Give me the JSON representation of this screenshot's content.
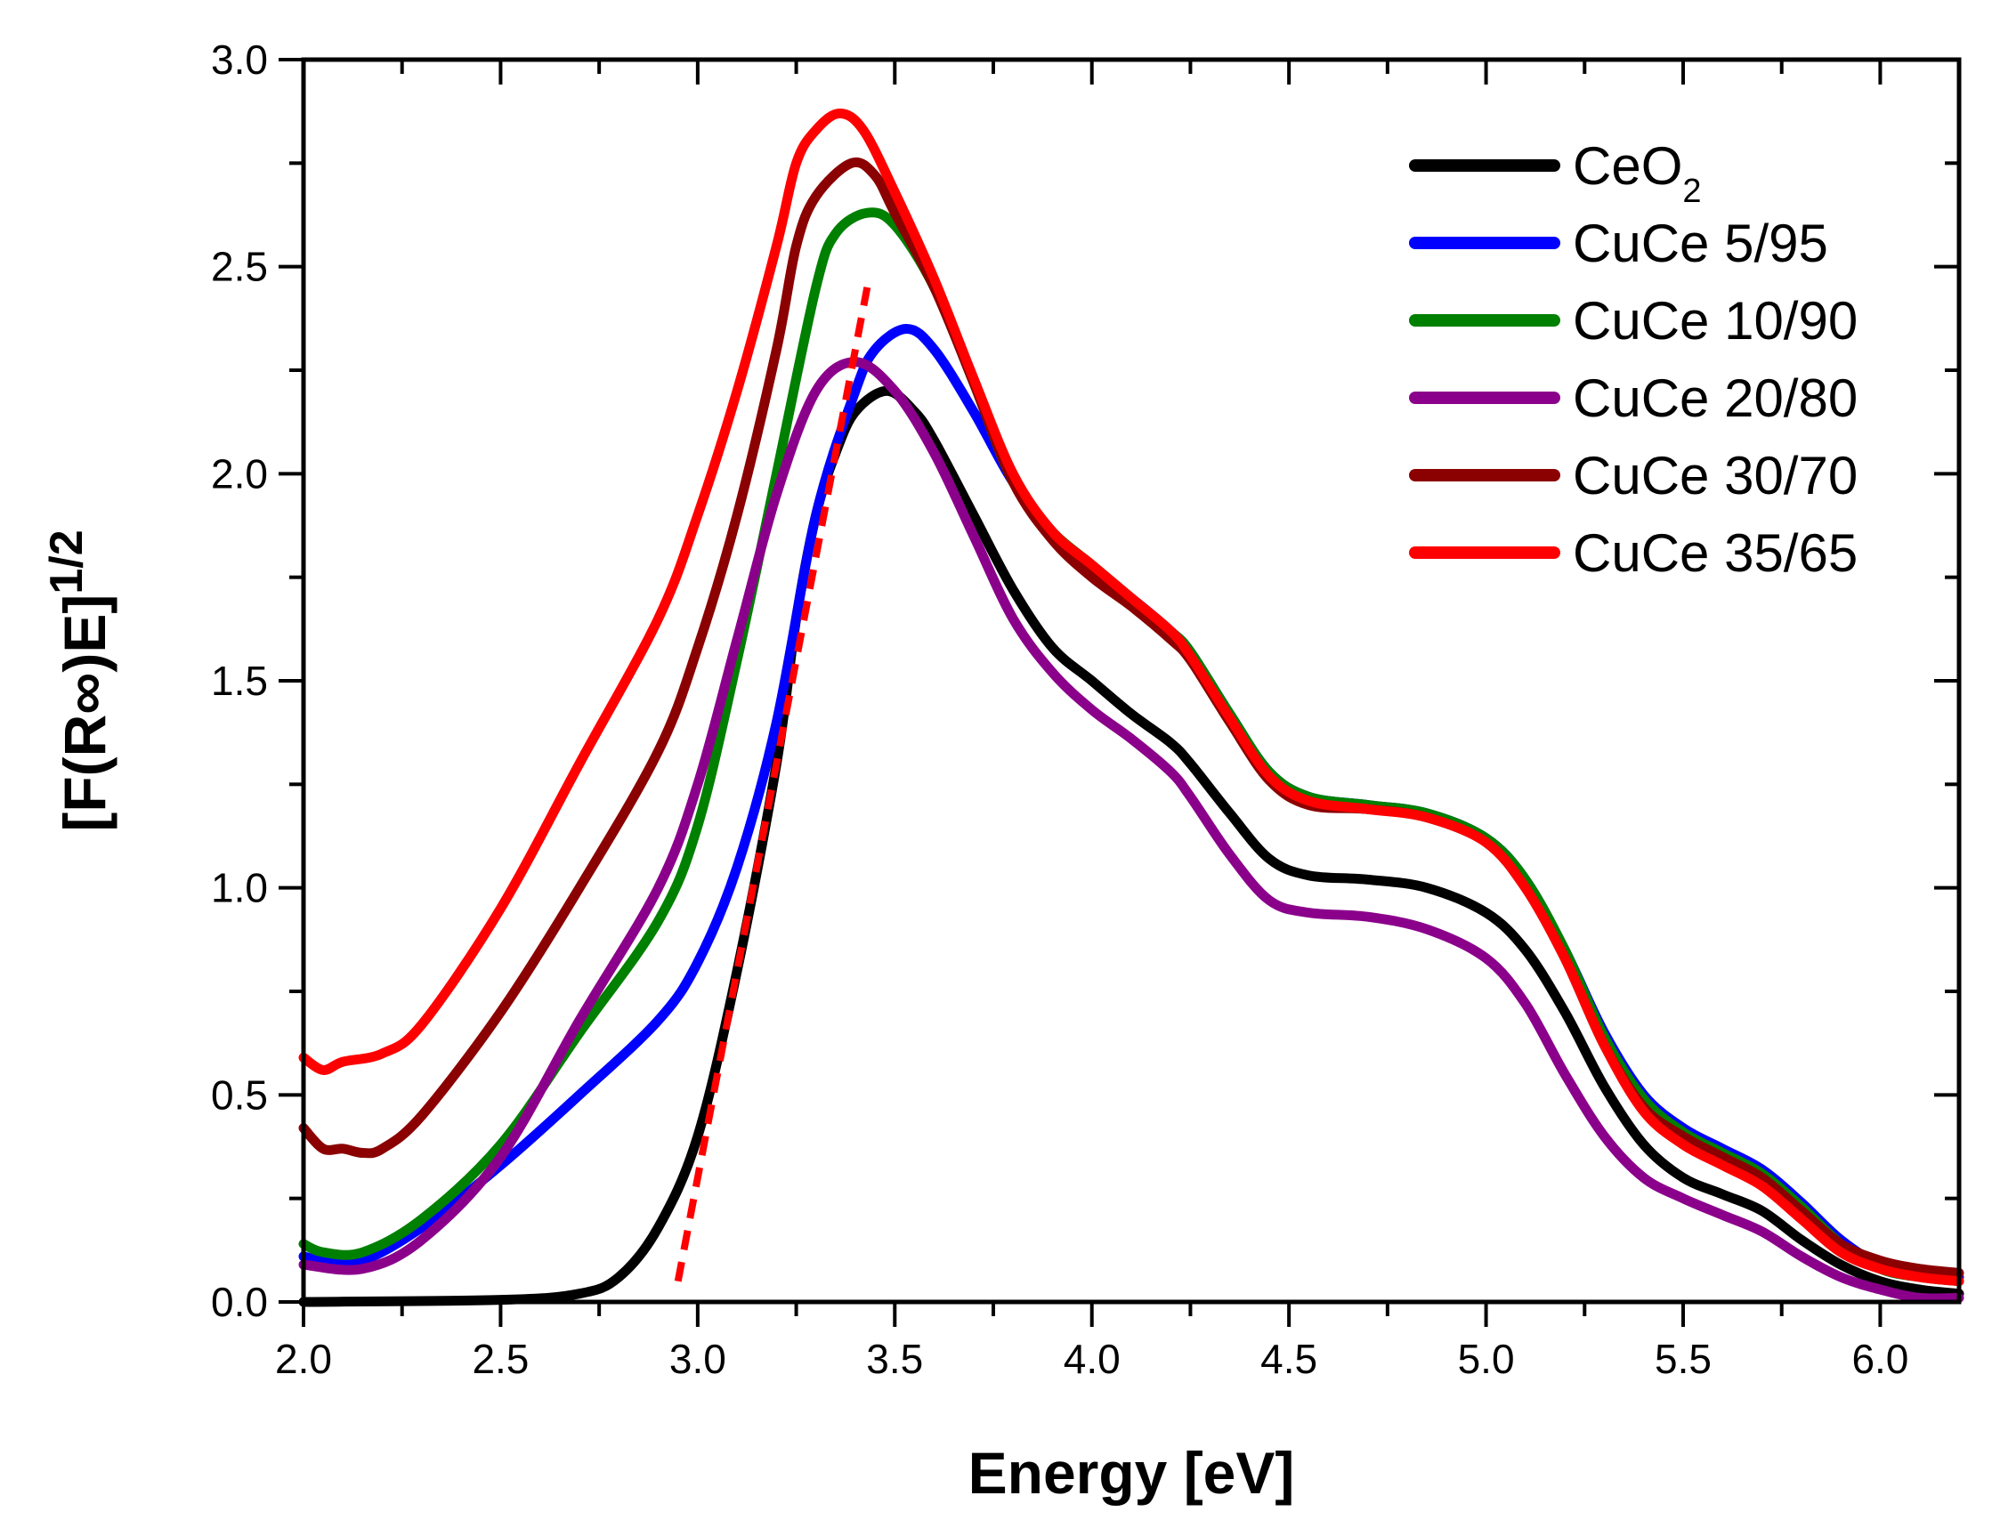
{
  "chart_data": {
    "type": "line",
    "title": "",
    "xlabel": "Energy [eV]",
    "ylabel": "[F(R∞)E]",
    "ylabel_superscript": "1/2",
    "xlim": [
      2.0,
      6.2
    ],
    "ylim": [
      0.0,
      3.0
    ],
    "xticks": [
      "2.0",
      "2.5",
      "3.0",
      "3.5",
      "4.0",
      "4.5",
      "5.0",
      "5.5",
      "6.0"
    ],
    "yticks": [
      "0.0",
      "0.5",
      "1.0",
      "1.5",
      "2.0",
      "2.5",
      "3.0"
    ],
    "grid": false,
    "legend_position": "top-right",
    "series": [
      {
        "name": "CeO",
        "subscript": "2",
        "color": "#000000",
        "x": [
          2.0,
          2.5,
          2.7,
          2.8,
          2.9,
          3.0,
          3.1,
          3.2,
          3.25,
          3.3,
          3.35,
          3.4,
          3.48,
          3.55,
          3.6,
          3.7,
          3.8,
          3.9,
          4.0,
          4.1,
          4.2,
          4.25,
          4.35,
          4.45,
          4.55,
          4.7,
          4.85,
          5.0,
          5.1,
          5.2,
          5.3,
          5.4,
          5.5,
          5.6,
          5.7,
          5.8,
          5.9,
          6.0,
          6.1,
          6.2
        ],
        "y": [
          0.0,
          0.005,
          0.02,
          0.06,
          0.18,
          0.4,
          0.8,
          1.3,
          1.65,
          1.9,
          2.05,
          2.15,
          2.2,
          2.15,
          2.08,
          1.9,
          1.72,
          1.58,
          1.5,
          1.42,
          1.35,
          1.3,
          1.18,
          1.07,
          1.03,
          1.02,
          1.0,
          0.94,
          0.85,
          0.7,
          0.52,
          0.38,
          0.3,
          0.26,
          0.22,
          0.15,
          0.09,
          0.05,
          0.03,
          0.02
        ]
      },
      {
        "name": "CuCe 5/95",
        "color": "#0000ff",
        "x": [
          2.0,
          2.05,
          2.15,
          2.3,
          2.5,
          2.7,
          2.9,
          3.0,
          3.1,
          3.2,
          3.3,
          3.4,
          3.45,
          3.53,
          3.6,
          3.7,
          3.8,
          3.9,
          4.0,
          4.1,
          4.2,
          4.25,
          4.35,
          4.45,
          4.55,
          4.7,
          4.85,
          5.0,
          5.1,
          5.2,
          5.3,
          5.4,
          5.5,
          5.6,
          5.7,
          5.8,
          5.9,
          6.0,
          6.1,
          6.2
        ],
        "y": [
          0.11,
          0.1,
          0.1,
          0.18,
          0.33,
          0.5,
          0.68,
          0.82,
          1.05,
          1.4,
          1.9,
          2.2,
          2.3,
          2.35,
          2.3,
          2.15,
          1.98,
          1.86,
          1.77,
          1.7,
          1.62,
          1.57,
          1.42,
          1.28,
          1.22,
          1.2,
          1.18,
          1.12,
          1.02,
          0.85,
          0.65,
          0.5,
          0.42,
          0.37,
          0.32,
          0.24,
          0.15,
          0.09,
          0.07,
          0.06
        ]
      },
      {
        "name": "CuCe 10/90",
        "color": "#008000",
        "x": [
          2.0,
          2.05,
          2.15,
          2.3,
          2.5,
          2.7,
          2.9,
          3.0,
          3.1,
          3.2,
          3.3,
          3.35,
          3.43,
          3.5,
          3.6,
          3.7,
          3.8,
          3.9,
          4.0,
          4.1,
          4.2,
          4.25,
          4.35,
          4.45,
          4.55,
          4.7,
          4.85,
          5.0,
          5.1,
          5.2,
          5.3,
          5.4,
          5.5,
          5.6,
          5.7,
          5.8,
          5.9,
          6.0,
          6.1,
          6.2
        ],
        "y": [
          0.14,
          0.12,
          0.12,
          0.2,
          0.38,
          0.65,
          0.92,
          1.15,
          1.55,
          2.0,
          2.45,
          2.58,
          2.63,
          2.6,
          2.45,
          2.22,
          1.98,
          1.86,
          1.78,
          1.7,
          1.62,
          1.57,
          1.42,
          1.28,
          1.22,
          1.2,
          1.18,
          1.12,
          1.02,
          0.85,
          0.64,
          0.49,
          0.41,
          0.36,
          0.31,
          0.23,
          0.14,
          0.08,
          0.06,
          0.05
        ]
      },
      {
        "name": "CuCe 20/80",
        "color": "#8b008b",
        "x": [
          2.0,
          2.15,
          2.3,
          2.5,
          2.7,
          2.9,
          3.0,
          3.1,
          3.2,
          3.3,
          3.4,
          3.5,
          3.6,
          3.7,
          3.8,
          3.9,
          4.0,
          4.1,
          4.2,
          4.25,
          4.35,
          4.45,
          4.55,
          4.7,
          4.85,
          5.0,
          5.1,
          5.2,
          5.3,
          5.4,
          5.5,
          5.6,
          5.7,
          5.8,
          5.9,
          6.0,
          6.1,
          6.2
        ],
        "y": [
          0.09,
          0.08,
          0.15,
          0.35,
          0.68,
          1.0,
          1.25,
          1.6,
          1.95,
          2.2,
          2.27,
          2.2,
          2.05,
          1.85,
          1.65,
          1.52,
          1.43,
          1.36,
          1.28,
          1.22,
          1.08,
          0.97,
          0.94,
          0.93,
          0.9,
          0.83,
          0.72,
          0.55,
          0.4,
          0.3,
          0.25,
          0.21,
          0.17,
          0.11,
          0.06,
          0.03,
          0.01,
          0.01
        ]
      },
      {
        "name": "CuCe 30/70",
        "color": "#8b0000",
        "x": [
          2.0,
          2.05,
          2.1,
          2.15,
          2.2,
          2.3,
          2.5,
          2.7,
          2.9,
          3.0,
          3.1,
          3.2,
          3.25,
          3.3,
          3.39,
          3.45,
          3.5,
          3.6,
          3.7,
          3.8,
          3.9,
          4.0,
          4.1,
          4.2,
          4.25,
          4.35,
          4.45,
          4.55,
          4.7,
          4.85,
          5.0,
          5.1,
          5.2,
          5.3,
          5.4,
          5.5,
          5.6,
          5.7,
          5.8,
          5.9,
          6.0,
          6.1,
          6.2
        ],
        "y": [
          0.42,
          0.37,
          0.37,
          0.36,
          0.37,
          0.45,
          0.7,
          1.0,
          1.33,
          1.58,
          1.9,
          2.3,
          2.55,
          2.67,
          2.75,
          2.72,
          2.63,
          2.45,
          2.22,
          1.98,
          1.84,
          1.75,
          1.68,
          1.6,
          1.55,
          1.4,
          1.26,
          1.2,
          1.19,
          1.17,
          1.11,
          1.0,
          0.83,
          0.62,
          0.47,
          0.4,
          0.35,
          0.3,
          0.22,
          0.14,
          0.1,
          0.08,
          0.07
        ]
      },
      {
        "name": "CuCe 35/65",
        "color": "#ff0000",
        "x": [
          2.0,
          2.05,
          2.1,
          2.2,
          2.3,
          2.5,
          2.7,
          2.9,
          3.0,
          3.1,
          3.2,
          3.25,
          3.3,
          3.36,
          3.42,
          3.5,
          3.6,
          3.7,
          3.8,
          3.9,
          4.0,
          4.1,
          4.2,
          4.25,
          4.35,
          4.45,
          4.55,
          4.7,
          4.85,
          5.0,
          5.1,
          5.2,
          5.3,
          5.4,
          5.5,
          5.6,
          5.7,
          5.8,
          5.9,
          6.0,
          6.1,
          6.2
        ],
        "y": [
          0.59,
          0.56,
          0.58,
          0.6,
          0.67,
          0.95,
          1.3,
          1.65,
          1.9,
          2.2,
          2.55,
          2.75,
          2.83,
          2.87,
          2.83,
          2.68,
          2.47,
          2.23,
          2.0,
          1.86,
          1.78,
          1.7,
          1.62,
          1.56,
          1.41,
          1.27,
          1.21,
          1.19,
          1.17,
          1.11,
          1.0,
          0.83,
          0.62,
          0.46,
          0.38,
          0.33,
          0.28,
          0.2,
          0.12,
          0.08,
          0.06,
          0.05
        ]
      }
    ],
    "annotations": [
      {
        "type": "dashed-fit-line",
        "color": "#ff0000",
        "x": [
          2.95,
          3.43
        ],
        "y": [
          0.05,
          2.45
        ]
      }
    ]
  }
}
